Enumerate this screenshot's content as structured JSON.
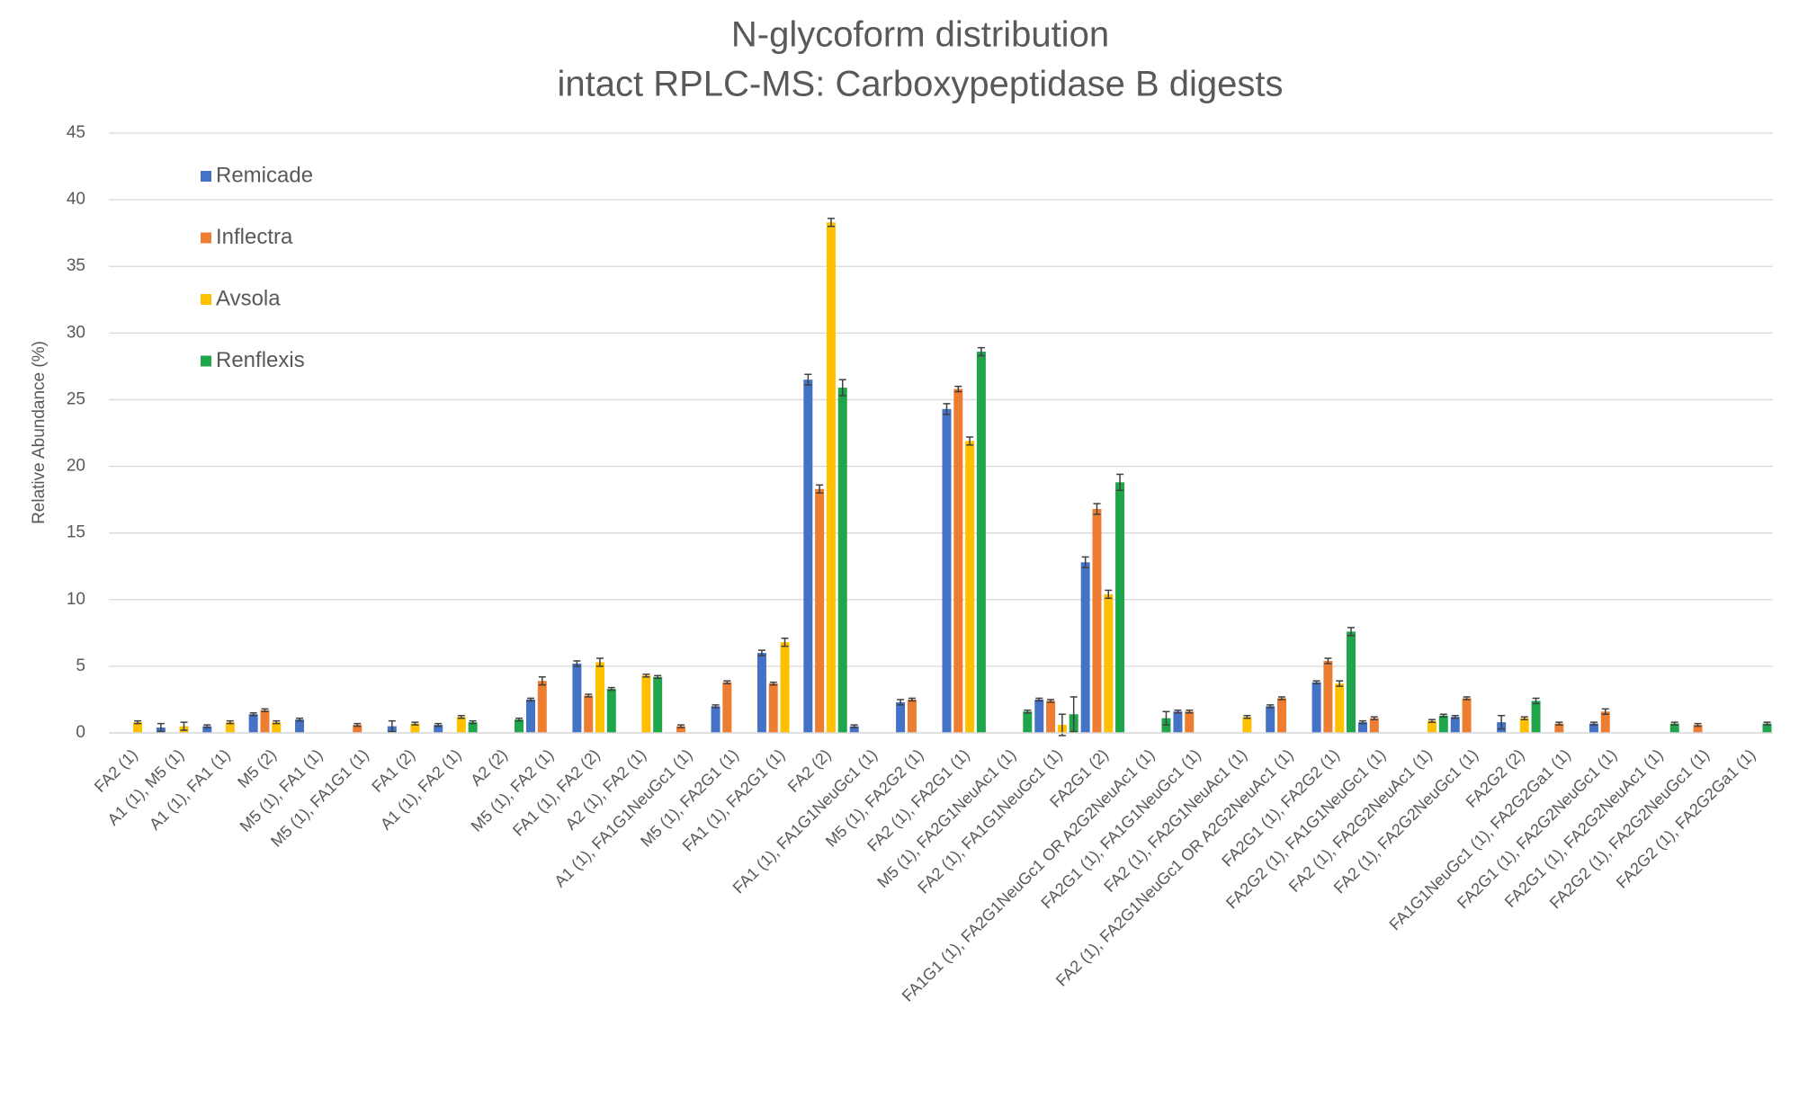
{
  "chart_data": {
    "type": "bar",
    "title": "N-glycoform distribution",
    "subtitle": "intact RPLC-MS: Carboxypeptidase B digests",
    "y_label": "Relative Abundance (%)",
    "categories": [
      "FA2 (1)",
      "A1 (1), M5 (1)",
      "A1 (1), FA1 (1)",
      "M5 (2)",
      "M5 (1), FA1 (1)",
      "M5 (1), FA1G1 (1)",
      "FA1 (2)",
      "A1 (1), FA2 (1)",
      "A2 (2)",
      "M5 (1), FA2 (1)",
      "FA1 (1), FA2 (2)",
      "A2 (1), FA2 (1)",
      "A1 (1), FA1G1NeuGc1 (1)",
      "M5 (1), FA2G1 (1)",
      "FA1 (1), FA2G1 (1)",
      "FA2 (2)",
      "FA1 (1), FA1G1NeuGc1 (1)",
      "M5 (1), FA2G2 (1)",
      "FA2 (1), FA2G1 (1)",
      "M5 (1), FA2G1NeuAc1 (1)",
      "FA2 (1), FA1G1NeuGc1 (1)",
      "FA2G1 (2)",
      "FA1G1 (1), FA2G1NeuGc1 OR A2G2NeuAc1 (1)",
      "FA2G1 (1), FA1G1NeuGc1 (1)",
      "FA2 (1), FA2G1NeuAc1 (1)",
      "FA2 (1), FA2G1NeuGc1 OR A2G2NeuAc1 (1)",
      "FA2G1 (1), FA2G2 (1)",
      "FA2G2 (1), FA1G1NeuGc1 (1)",
      "FA2 (1), FA2G2NeuAc1 (1)",
      "FA2 (1), FA2G2NeuGc1 (1)",
      "FA2G2 (2)",
      "FA1G1NeuGc1 (1), FA2G2Ga1 (1)",
      "FA2G1 (1), FA2G2NeuGc1 (1)",
      "FA2G1 (1), FA2G2NeuAc1 (1)",
      "FA2G2 (1), FA2G2NeuGc1 (1)",
      "FA2G2 (1), FA2G2Ga1 (1)"
    ],
    "series": [
      {
        "name": "Remicade",
        "color": "#4472c4",
        "values": [
          null,
          0.4,
          0.5,
          1.4,
          1.0,
          null,
          0.5,
          0.6,
          null,
          2.5,
          5.2,
          null,
          null,
          2.0,
          6.0,
          26.5,
          0.5,
          2.3,
          24.3,
          null,
          2.5,
          12.8,
          null,
          1.6,
          null,
          2.0,
          3.8,
          0.8,
          null,
          1.2,
          0.8,
          null,
          0.7,
          null,
          null,
          null
        ],
        "errors": [
          null,
          0.3,
          0.1,
          0.1,
          0.1,
          null,
          0.4,
          0.1,
          null,
          0.1,
          0.2,
          null,
          null,
          0.1,
          0.2,
          0.4,
          0.1,
          0.2,
          0.4,
          null,
          0.1,
          0.4,
          null,
          0.1,
          null,
          0.1,
          0.1,
          0.1,
          null,
          0.1,
          0.5,
          null,
          0.1,
          null,
          null,
          null
        ]
      },
      {
        "name": "Inflectra",
        "color": "#ed7d31",
        "values": [
          null,
          null,
          null,
          1.7,
          null,
          0.6,
          null,
          null,
          null,
          3.9,
          2.8,
          null,
          0.5,
          3.8,
          3.7,
          18.3,
          null,
          2.5,
          25.8,
          null,
          2.4,
          16.8,
          null,
          1.6,
          null,
          2.6,
          5.4,
          1.1,
          null,
          2.6,
          null,
          0.7,
          1.6,
          null,
          0.6,
          null
        ],
        "errors": [
          null,
          null,
          null,
          0.1,
          null,
          0.1,
          null,
          null,
          null,
          0.3,
          0.1,
          null,
          0.1,
          0.1,
          0.1,
          0.3,
          null,
          0.1,
          0.2,
          null,
          0.1,
          0.4,
          null,
          0.1,
          null,
          0.1,
          0.2,
          0.1,
          null,
          0.1,
          null,
          0.1,
          0.2,
          null,
          0.1,
          null
        ]
      },
      {
        "name": "Avsola",
        "color": "#ffc000",
        "values": [
          0.8,
          0.5,
          0.8,
          0.8,
          null,
          null,
          0.7,
          1.2,
          null,
          null,
          5.3,
          4.3,
          null,
          null,
          6.8,
          38.3,
          null,
          null,
          21.9,
          null,
          0.6,
          10.4,
          null,
          null,
          1.2,
          null,
          3.7,
          null,
          0.9,
          null,
          1.1,
          null,
          null,
          null,
          null,
          null
        ],
        "errors": [
          0.1,
          0.3,
          0.1,
          0.1,
          null,
          null,
          0.1,
          0.1,
          null,
          null,
          0.3,
          0.1,
          null,
          null,
          0.3,
          0.3,
          null,
          null,
          0.3,
          null,
          0.8,
          0.3,
          null,
          null,
          0.1,
          null,
          0.2,
          null,
          0.1,
          null,
          0.1,
          null,
          null,
          null,
          null,
          null
        ]
      },
      {
        "name": "Renflexis",
        "color": "#1fa64a",
        "values": [
          null,
          null,
          null,
          null,
          null,
          null,
          null,
          0.8,
          1.0,
          null,
          3.3,
          4.2,
          null,
          null,
          null,
          25.9,
          null,
          null,
          28.6,
          1.6,
          1.4,
          18.8,
          1.1,
          null,
          null,
          null,
          7.6,
          null,
          1.3,
          null,
          2.4,
          null,
          null,
          0.7,
          null,
          0.7
        ],
        "errors": [
          null,
          null,
          null,
          null,
          null,
          null,
          null,
          0.1,
          0.1,
          null,
          0.1,
          0.1,
          null,
          null,
          null,
          0.6,
          null,
          null,
          0.3,
          0.1,
          1.3,
          0.6,
          0.5,
          null,
          null,
          null,
          0.3,
          null,
          0.1,
          null,
          0.2,
          null,
          null,
          0.1,
          null,
          0.1
        ]
      }
    ],
    "ylim": [
      0,
      45
    ],
    "yticks": [
      0,
      5,
      10,
      15,
      20,
      25,
      30,
      35,
      40,
      45
    ],
    "grid": true,
    "legend": "upper left"
  }
}
